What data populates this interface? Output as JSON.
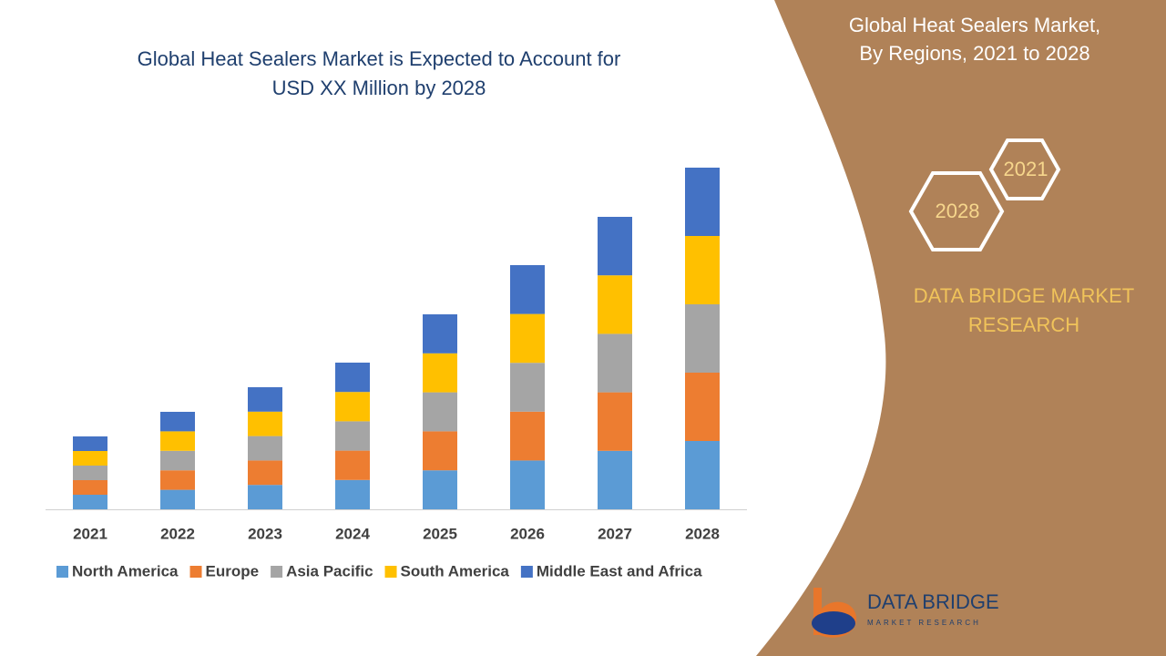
{
  "chart_data": {
    "type": "bar",
    "stacked": true,
    "title": "Global Heat Sealers Market is Expected to Account for",
    "subtitle": "USD XX Million by 2028",
    "categories": [
      "2021",
      "2022",
      "2023",
      "2024",
      "2025",
      "2026",
      "2027",
      "2028"
    ],
    "series": [
      {
        "name": "North America",
        "color": "#5b9bd5",
        "values": [
          16,
          21.4,
          26.8,
          32.2,
          42.8,
          53.6,
          64.2,
          75
        ]
      },
      {
        "name": "Europe",
        "color": "#ed7d31",
        "values": [
          16,
          21.4,
          26.8,
          32.2,
          42.8,
          53.6,
          64.2,
          75
        ]
      },
      {
        "name": "Asia Pacific",
        "color": "#a5a5a5",
        "values": [
          16,
          21.4,
          26.8,
          32.2,
          42.8,
          53.6,
          64.2,
          75
        ]
      },
      {
        "name": "South America",
        "color": "#ffc000",
        "values": [
          16,
          21.4,
          26.8,
          32.2,
          42.8,
          53.6,
          64.2,
          75
        ]
      },
      {
        "name": "Middle East and Africa",
        "color": "#4472c4",
        "values": [
          16,
          21.4,
          26.8,
          32.2,
          42.8,
          53.6,
          64.2,
          75
        ]
      }
    ],
    "legend": "bottom"
  },
  "panel": {
    "title_lines": [
      "Global Heat Sealers Market,",
      "By Regions, 2021 to 2028"
    ],
    "hexagons": [
      "2021",
      "2028"
    ],
    "brand_lines": [
      "DATA BRIDGE MARKET",
      "RESEARCH"
    ],
    "logo": {
      "name": "DATA BRIDGE",
      "tagline": "MARKET RESEARCH"
    }
  }
}
